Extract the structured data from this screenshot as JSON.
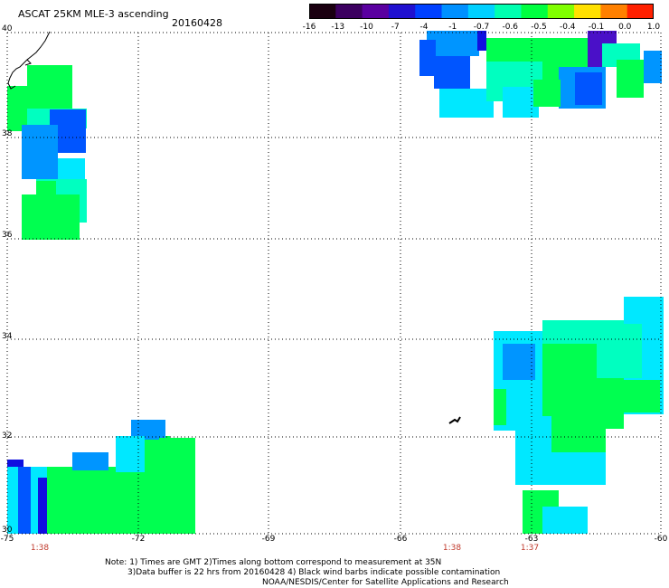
{
  "header": {
    "title": "ASCAT 25KM MLE-3 ascending",
    "date": "20160428"
  },
  "colorbar": {
    "labels": [
      "-16",
      "-13",
      "-10",
      "-7",
      "-4",
      "-1",
      "-0.7",
      "-0.6",
      "-0.5",
      "-0.4",
      "-0.1",
      "0.0",
      "1.0"
    ],
    "colors": [
      "#1a0010",
      "#3c0060",
      "#5a00a0",
      "#2010d0",
      "#0040ff",
      "#0090ff",
      "#00d0ff",
      "#00ffb0",
      "#00ff40",
      "#80ff00",
      "#ffe000",
      "#ff8000",
      "#ff2000"
    ]
  },
  "axes": {
    "lat_labels": [
      "40",
      "38",
      "36",
      "34",
      "32",
      "30"
    ],
    "lon_labels": [
      "-75",
      "-72",
      "-69",
      "-66",
      "-63",
      "-60"
    ]
  },
  "times": [
    "1:38",
    "1:38",
    "1:37"
  ],
  "notes": {
    "line1": "Note: 1) Times are GMT 2)Times along bottom correspond to measurement at 35N",
    "line2": "3)Data buffer is 22 hrs from 20160428 4) Black wind barbs indicate possible contamination",
    "line3": "NOAA/NESDIS/Center for Satellite Applications and Research"
  },
  "palette": {
    "blue": "#0055ff",
    "lightblue": "#0095ff",
    "cyan": "#00e8ff",
    "cyangreen": "#00ffc0",
    "green": "#00ff50",
    "purple": "#4a10c8",
    "darkblue": "#1010e0"
  }
}
